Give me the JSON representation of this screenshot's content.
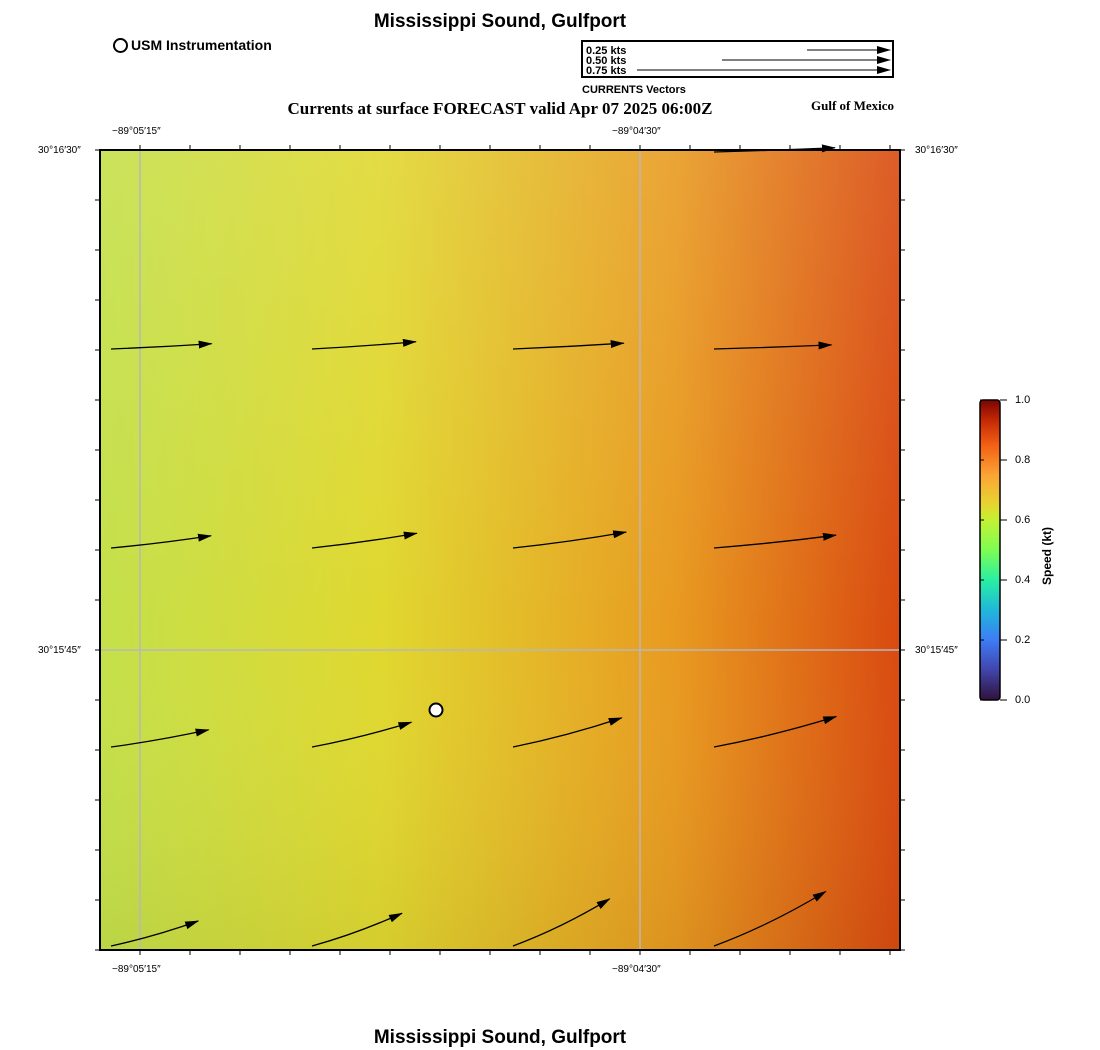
{
  "header": {
    "title": "Mississippi Sound, Gulfport",
    "subtitle": "Currents at surface FORECAST valid Apr 07 2025 06:00Z",
    "region_label": "Gulf of Mexico"
  },
  "station_legend": {
    "label": "USM Instrumentation"
  },
  "vector_legend": {
    "caption": "CURRENTS Vectors",
    "entries": [
      {
        "label": "0.25 kts",
        "speed": 0.25
      },
      {
        "label": "0.50 kts",
        "speed": 0.5
      },
      {
        "label": "0.75 kts",
        "speed": 0.75
      }
    ]
  },
  "map": {
    "lon_ticks": [
      "−89°05′15″",
      "−89°04′30″"
    ],
    "lat_ticks": [
      "30°16′30″",
      "30°15′45″"
    ],
    "station": {
      "name": "USM Instrumentation",
      "col_frac": 0.42,
      "row_frac": 0.7
    },
    "colors": {
      "low": "#c4e04a",
      "mid": "#e0d830",
      "orange": "#e89a20",
      "high": "#d94a10"
    }
  },
  "colorbar": {
    "title": "Speed (kt)",
    "ticks": [
      "1.0",
      "0.8",
      "0.6",
      "0.4",
      "0.2",
      "0.0"
    ],
    "range": [
      0.0,
      1.0
    ]
  },
  "vectors": [
    {
      "row": 0,
      "col": 3,
      "speed": 0.72,
      "dir_deg": 2
    },
    {
      "row": 1,
      "col": 0,
      "speed": 0.6,
      "dir_deg": 3
    },
    {
      "row": 1,
      "col": 1,
      "speed": 0.62,
      "dir_deg": 4
    },
    {
      "row": 1,
      "col": 2,
      "speed": 0.66,
      "dir_deg": 3
    },
    {
      "row": 1,
      "col": 3,
      "speed": 0.7,
      "dir_deg": 2
    },
    {
      "row": 2,
      "col": 0,
      "speed": 0.6,
      "dir_deg": 7
    },
    {
      "row": 2,
      "col": 1,
      "speed": 0.63,
      "dir_deg": 8
    },
    {
      "row": 2,
      "col": 2,
      "speed": 0.68,
      "dir_deg": 8
    },
    {
      "row": 2,
      "col": 3,
      "speed": 0.73,
      "dir_deg": 6
    },
    {
      "row": 3,
      "col": 0,
      "speed": 0.59,
      "dir_deg": 10
    },
    {
      "row": 3,
      "col": 1,
      "speed": 0.61,
      "dir_deg": 14
    },
    {
      "row": 3,
      "col": 2,
      "speed": 0.67,
      "dir_deg": 15
    },
    {
      "row": 3,
      "col": 3,
      "speed": 0.75,
      "dir_deg": 14
    },
    {
      "row": 4,
      "col": 0,
      "speed": 0.54,
      "dir_deg": 16
    },
    {
      "row": 4,
      "col": 1,
      "speed": 0.57,
      "dir_deg": 20
    },
    {
      "row": 4,
      "col": 2,
      "speed": 0.64,
      "dir_deg": 26
    },
    {
      "row": 4,
      "col": 3,
      "speed": 0.74,
      "dir_deg": 26
    }
  ]
}
